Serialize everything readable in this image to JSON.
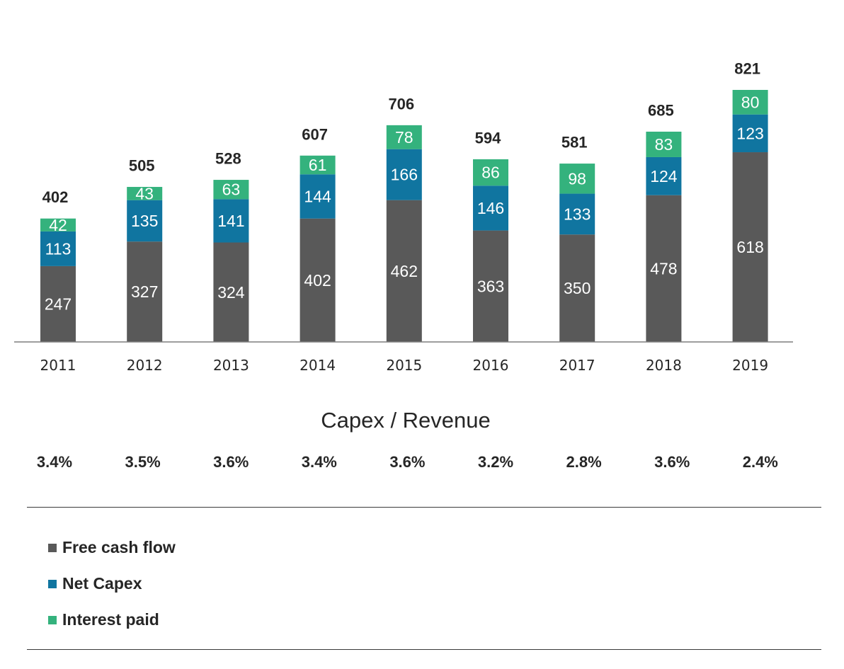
{
  "chart_data": {
    "type": "bar",
    "stacked": true,
    "categories": [
      "2011",
      "2012",
      "2013",
      "2014",
      "2015",
      "2016",
      "2017",
      "2018",
      "2019"
    ],
    "series": [
      {
        "name": "Free cash flow",
        "color": "#595959",
        "values": [
          247,
          327,
          324,
          402,
          462,
          363,
          350,
          478,
          618
        ]
      },
      {
        "name": "Net Capex",
        "color": "#1075a0",
        "values": [
          113,
          135,
          141,
          144,
          166,
          146,
          133,
          124,
          123
        ]
      },
      {
        "name": "Interest paid",
        "color": "#34b27d",
        "values": [
          42,
          43,
          63,
          61,
          78,
          86,
          98,
          83,
          80
        ]
      }
    ],
    "totals": [
      402,
      505,
      528,
      607,
      706,
      594,
      581,
      685,
      821
    ],
    "ylim": [
      0,
      821
    ],
    "legend_position": "bottom-left"
  },
  "ratio": {
    "title": "Capex / Revenue",
    "values": [
      "3.4%",
      "3.5%",
      "3.6%",
      "3.4%",
      "3.6%",
      "3.2%",
      "2.8%",
      "3.6%",
      "2.4%"
    ]
  }
}
